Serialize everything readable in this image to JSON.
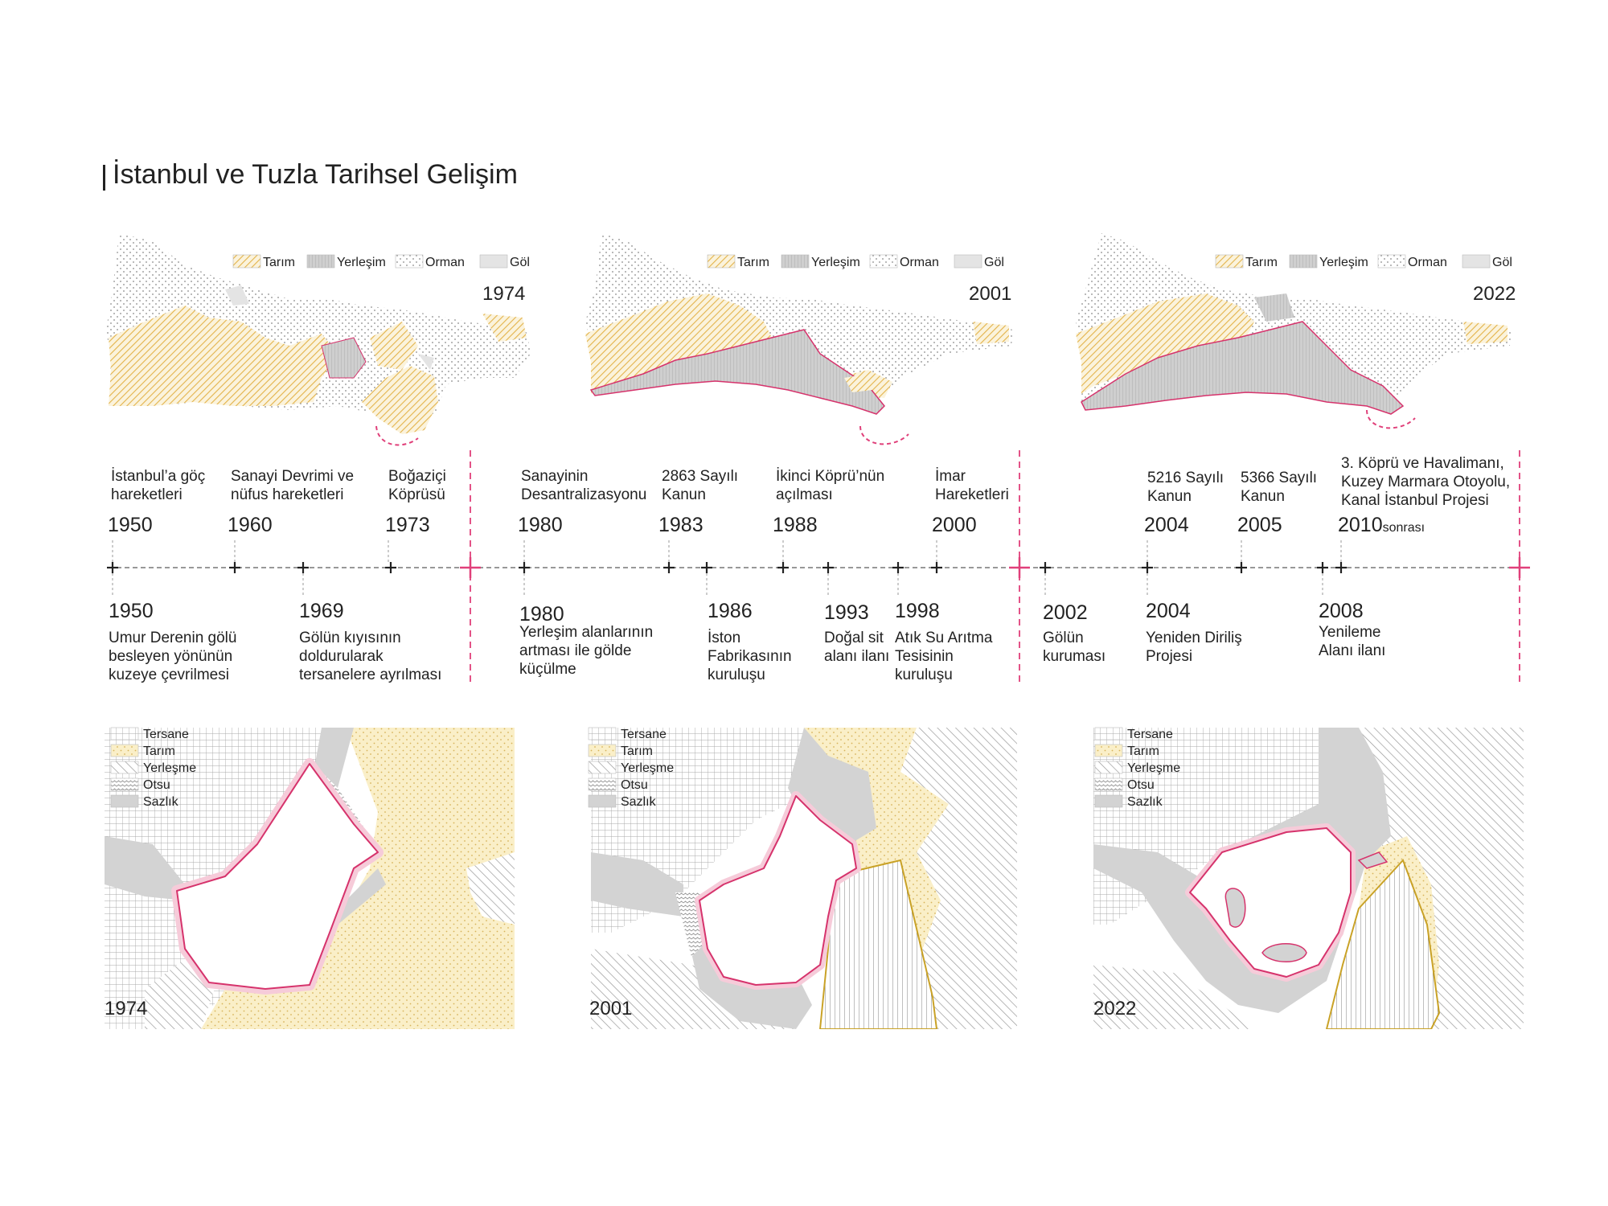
{
  "title": "İstanbul ve Tuzla Tarihsel Gelişim",
  "colors": {
    "accent_pink": "#e0407a",
    "tarim_yellow": "#e3b34a",
    "tarim_fill": "#f8edc7",
    "yerlesim_gray": "#bdbdbd",
    "axis_gray": "#777777",
    "lake_outline": "#d6336c",
    "lake_halo": "#f6cbd9",
    "triangle_outline": "#c9a227"
  },
  "top_legend": [
    "Tarım",
    "Yerleşim",
    "Orman",
    "Göl"
  ],
  "top_maps": [
    {
      "year": "1974"
    },
    {
      "year": "2001"
    },
    {
      "year": "2022"
    }
  ],
  "bottom_legend": [
    "Tersane",
    "Tarım",
    "Yerleşme",
    "Otsu",
    "Sazlık"
  ],
  "bottom_maps": [
    {
      "year": "1974"
    },
    {
      "year": "2001"
    },
    {
      "year": "2022"
    }
  ],
  "timeline_above": [
    {
      "year": "1950",
      "text": [
        "İstanbul’a göç",
        "hareketleri"
      ]
    },
    {
      "year": "1960",
      "text": [
        "Sanayi Devrimi ve",
        "nüfus hareketleri"
      ]
    },
    {
      "year": "1973",
      "text": [
        "Boğaziçi",
        "Köprüsü"
      ]
    },
    {
      "year": "1980",
      "text": [
        "Sanayinin",
        "Desantralizasyonu"
      ]
    },
    {
      "year": "1983",
      "text": [
        "2863 Sayılı",
        "Kanun"
      ]
    },
    {
      "year": "1988",
      "text": [
        "İkinci Köprü’nün",
        "açılması"
      ]
    },
    {
      "year": "2000",
      "text": [
        "İmar",
        "Hareketleri"
      ]
    },
    {
      "year": "2004",
      "text": [
        "5216 Sayılı",
        "Kanun"
      ]
    },
    {
      "year": "2005",
      "text": [
        "5366 Sayılı",
        "Kanun"
      ]
    },
    {
      "year": "2010",
      "suffix": "sonrası",
      "text": [
        "3. Köprü ve Havalimanı,",
        "Kuzey Marmara Otoyolu,",
        "Kanal İstanbul Projesi"
      ]
    }
  ],
  "timeline_below": [
    {
      "year": "1950",
      "text": [
        "Umur Derenin gölü",
        "besleyen yönünün",
        "kuzeye çevrilmesi"
      ]
    },
    {
      "year": "1969",
      "text": [
        "Gölün kıyısının",
        "doldurularak",
        "tersanelere ayrılması"
      ]
    },
    {
      "year": "1980",
      "text": [
        "Yerleşim alanlarının",
        "artması ile gölde",
        "küçülme"
      ]
    },
    {
      "year": "1986",
      "text": [
        "İston",
        "Fabrikasının",
        "kuruluşu"
      ]
    },
    {
      "year": "1993",
      "text": [
        "Doğal sit",
        "alanı ilanı"
      ]
    },
    {
      "year": "1998",
      "text": [
        "Atık Su Arıtma",
        "Tesisinin",
        "kuruluşu"
      ]
    },
    {
      "year": "2002",
      "text": [
        "Gölün",
        "kuruması"
      ]
    },
    {
      "year": "2004",
      "text": [
        "Yeniden Diriliş",
        "Projesi"
      ]
    },
    {
      "year": "2008",
      "text": [
        "Yenileme",
        "Alanı ilanı"
      ]
    }
  ]
}
